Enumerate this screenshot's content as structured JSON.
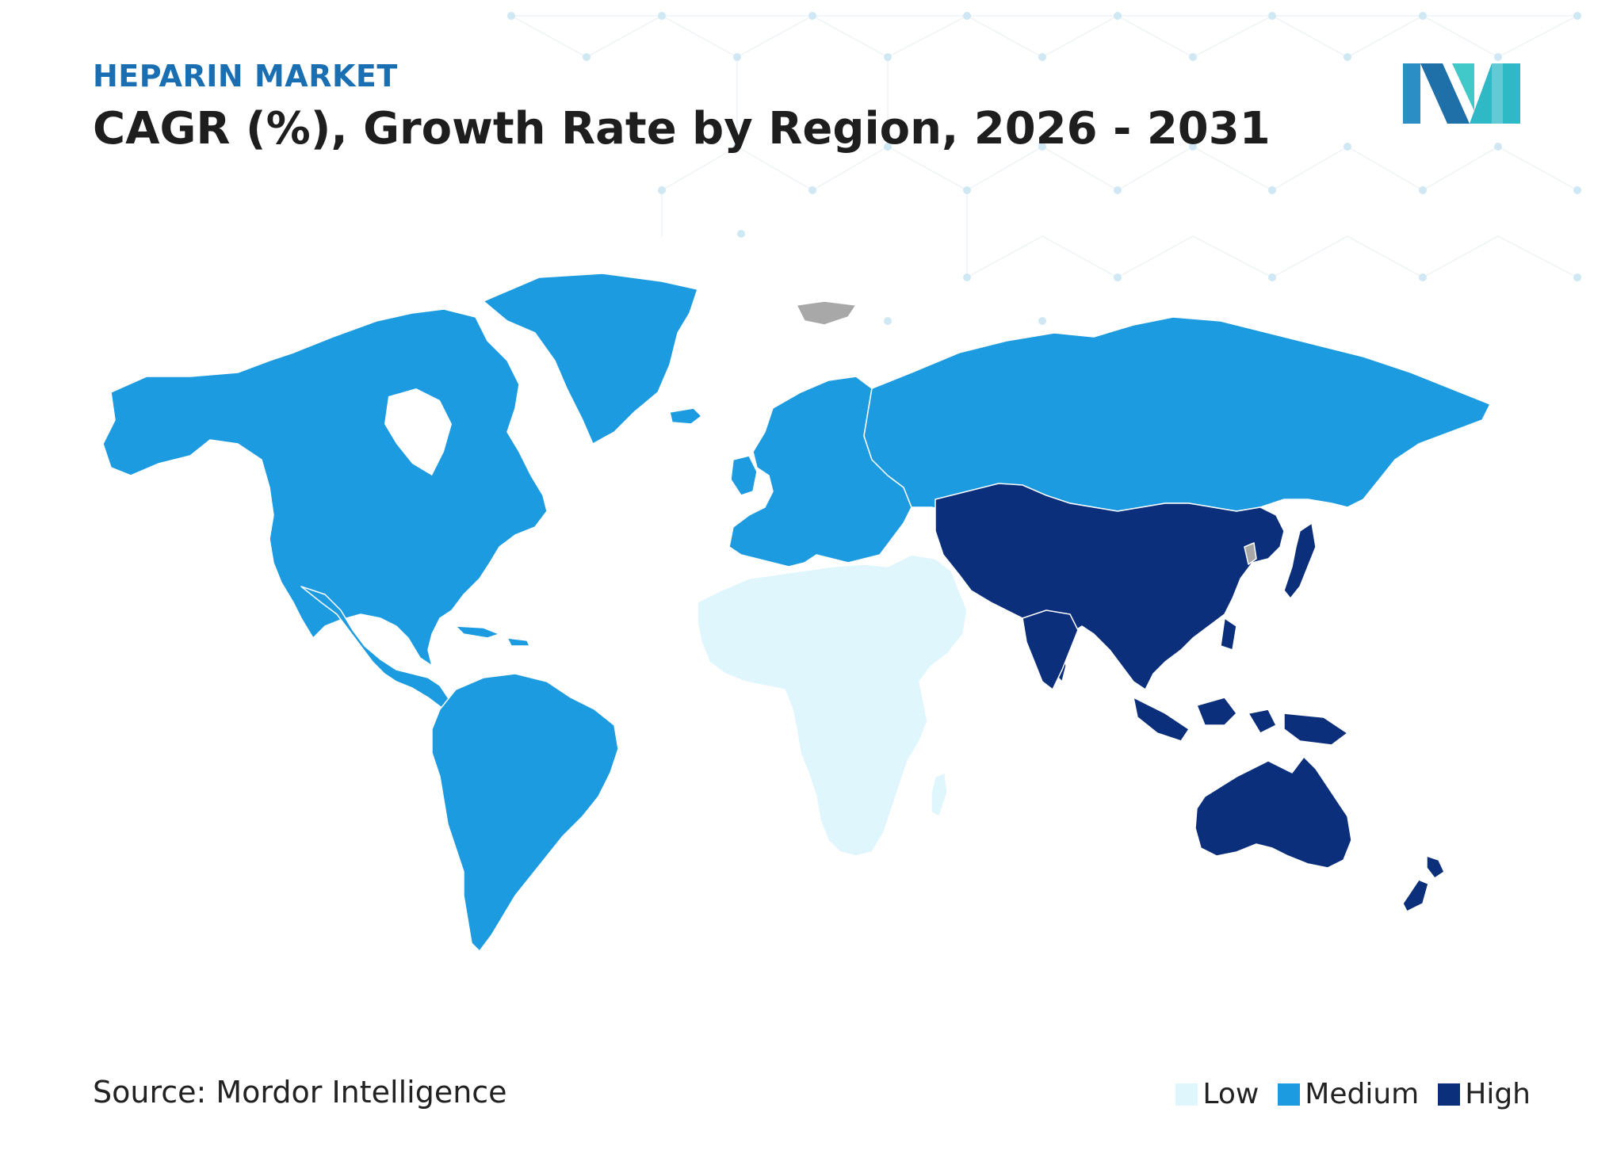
{
  "header": {
    "market_label": "HEPARIN MARKET",
    "title": "CAGR (%), Growth Rate by Region, 2026 - 2031"
  },
  "footer": {
    "source": "Source: Mordor Intelligence"
  },
  "legend": [
    {
      "label": "Low",
      "color": "#dff6fd"
    },
    {
      "label": "Medium",
      "color": "#1d9be0"
    },
    {
      "label": "High",
      "color": "#0b2f7a"
    }
  ],
  "regions": [
    {
      "name": "North America",
      "level": "Medium"
    },
    {
      "name": "South America",
      "level": "Medium"
    },
    {
      "name": "Europe",
      "level": "Medium"
    },
    {
      "name": "Russia",
      "level": "Medium"
    },
    {
      "name": "Greenland",
      "level": "Medium"
    },
    {
      "name": "Middle East and Africa",
      "level": "Low"
    },
    {
      "name": "Asia-Pacific",
      "level": "High"
    }
  ],
  "colors": {
    "low": "#dff6fd",
    "medium": "#1d9be0",
    "high": "#0b2f7a",
    "no_data": "#a8a8a8",
    "border": "#ffffff"
  },
  "logo": {
    "icon": "mordor-intelligence-logo-icon"
  }
}
